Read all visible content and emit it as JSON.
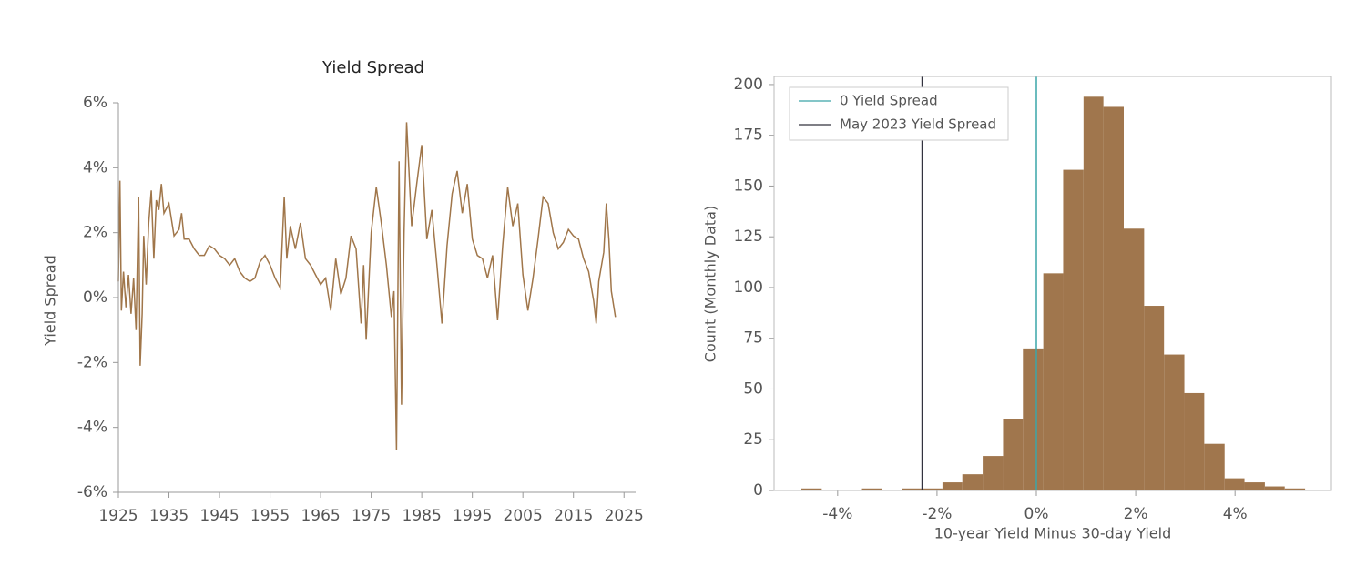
{
  "chart_data": [
    {
      "type": "line",
      "title": "Yield Spread",
      "y_label": "Yield Spread",
      "x": [
        1925.0,
        1925.3,
        1925.6,
        1926,
        1926.5,
        1927,
        1927.5,
        1928,
        1928.5,
        1929,
        1929.3,
        1929.7,
        1930,
        1930.5,
        1931,
        1931.5,
        1932,
        1932.5,
        1933,
        1933.5,
        1934,
        1935,
        1936,
        1937,
        1937.5,
        1938,
        1939,
        1940,
        1941,
        1942,
        1943,
        1944,
        1945,
        1946,
        1947,
        1948,
        1949,
        1950,
        1951,
        1952,
        1953,
        1954,
        1955,
        1956,
        1957,
        1957.8,
        1958.3,
        1959,
        1960,
        1961,
        1962,
        1963,
        1964,
        1965,
        1966,
        1967,
        1968,
        1969,
        1970,
        1971,
        1972,
        1973,
        1973.5,
        1974,
        1975,
        1976,
        1977,
        1978,
        1979,
        1979.5,
        1980,
        1980.5,
        1981,
        1981.5,
        1982,
        1983,
        1984,
        1985,
        1986,
        1987,
        1988,
        1989,
        1990,
        1991,
        1992,
        1993,
        1994,
        1995,
        1996,
        1997,
        1998,
        1999,
        2000,
        2001,
        2002,
        2003,
        2004,
        2005,
        2006,
        2007,
        2008,
        2009,
        2010,
        2011,
        2012,
        2013,
        2014,
        2015,
        2016,
        2017,
        2018,
        2019,
        2019.5,
        2020,
        2021,
        2021.5,
        2022,
        2022.5,
        2023.3
      ],
      "series": [
        {
          "name": "Yield Spread",
          "color": "#a0764a",
          "values": [
            0.5,
            3.6,
            -0.4,
            0.8,
            -0.3,
            0.7,
            -0.5,
            0.6,
            -1.0,
            3.1,
            -2.1,
            -0.5,
            1.9,
            0.4,
            2.3,
            3.3,
            1.2,
            3.0,
            2.7,
            3.5,
            2.6,
            2.9,
            1.9,
            2.1,
            2.6,
            1.8,
            1.8,
            1.5,
            1.3,
            1.3,
            1.6,
            1.5,
            1.3,
            1.2,
            1.0,
            1.2,
            0.8,
            0.6,
            0.5,
            0.6,
            1.1,
            1.3,
            1.0,
            0.6,
            0.3,
            3.1,
            1.2,
            2.2,
            1.5,
            2.3,
            1.2,
            1.0,
            0.7,
            0.4,
            0.6,
            -0.4,
            1.2,
            0.1,
            0.6,
            1.9,
            1.5,
            -0.8,
            1.0,
            -1.3,
            2.0,
            3.4,
            2.3,
            1.0,
            -0.6,
            0.2,
            -4.7,
            4.2,
            -3.3,
            2.0,
            5.4,
            2.2,
            3.5,
            4.7,
            1.8,
            2.7,
            1.0,
            -0.8,
            1.6,
            3.2,
            3.9,
            2.6,
            3.5,
            1.8,
            1.3,
            1.2,
            0.6,
            1.3,
            -0.7,
            1.6,
            3.4,
            2.2,
            2.9,
            0.7,
            -0.4,
            0.6,
            1.8,
            3.1,
            2.9,
            2.0,
            1.5,
            1.7,
            2.1,
            1.9,
            1.8,
            1.2,
            0.8,
            -0.1,
            -0.8,
            0.5,
            1.4,
            2.9,
            1.8,
            0.2,
            -0.6
          ]
        }
      ],
      "xlim": [
        1925,
        2027.3
      ],
      "xticks": [
        1925,
        1935,
        1945,
        1955,
        1965,
        1975,
        1985,
        1995,
        2005,
        2015,
        2025
      ],
      "ylim": [
        -6,
        6
      ],
      "yticks": [
        {
          "value": -6,
          "label": "-6%"
        },
        {
          "value": -4,
          "label": "-4%"
        },
        {
          "value": -2,
          "label": "-2%"
        },
        {
          "value": 0,
          "label": "0%"
        },
        {
          "value": 2,
          "label": "2%"
        },
        {
          "value": 4,
          "label": "4%"
        },
        {
          "value": 6,
          "label": "6%"
        }
      ]
    },
    {
      "type": "histogram",
      "x_label": "10-year Yield Minus 30-day Yield",
      "y_label": "Count (Monthly Data)",
      "color": "#a0764d",
      "bins": [
        -4.73,
        -4.32,
        -3.92,
        -3.51,
        -3.11,
        -2.7,
        -2.3,
        -1.89,
        -1.49,
        -1.08,
        -0.67,
        -0.27,
        0.14,
        0.54,
        0.95,
        1.35,
        1.76,
        2.17,
        2.57,
        2.98,
        3.38,
        3.79,
        4.19,
        4.6,
        5.0,
        5.41
      ],
      "counts": [
        1,
        0,
        0,
        1,
        0,
        1,
        1,
        4,
        8,
        17,
        35,
        70,
        107,
        158,
        194,
        189,
        129,
        91,
        67,
        48,
        23,
        6,
        4,
        2,
        1
      ],
      "vlines": [
        {
          "name": "0 Yield Spread",
          "value": 0,
          "color": "#3aa5a8"
        },
        {
          "name": "May 2023 Yield Spread",
          "value": -2.3,
          "color": "#33333f"
        }
      ],
      "legend": "upper left",
      "xlim": [
        -5.28,
        5.94
      ],
      "xticks": [
        {
          "value": -4,
          "label": "-4%"
        },
        {
          "value": -2,
          "label": "-2%"
        },
        {
          "value": 0,
          "label": "0%"
        },
        {
          "value": 2,
          "label": "2%"
        },
        {
          "value": 4,
          "label": "4%"
        }
      ],
      "ylim": [
        0,
        204
      ],
      "yticks": [
        0,
        25,
        50,
        75,
        100,
        125,
        150,
        175,
        200
      ]
    }
  ]
}
